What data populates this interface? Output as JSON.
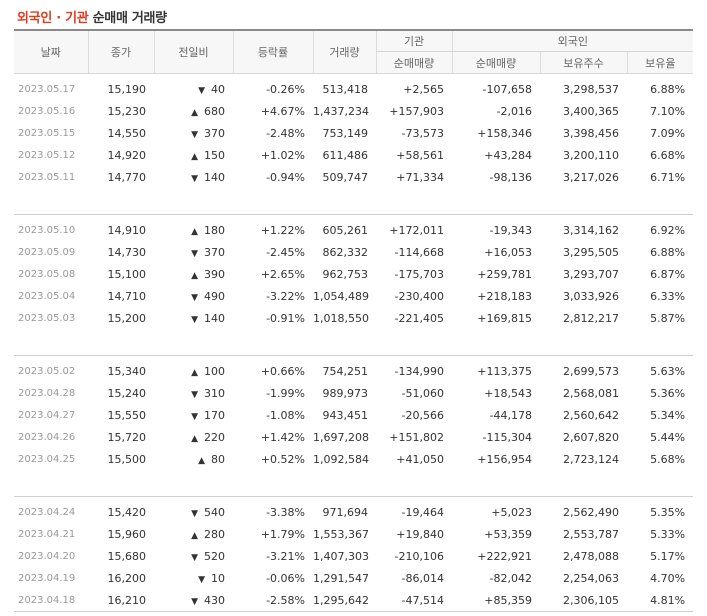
{
  "title": {
    "part1": "외국인",
    "dot": " · ",
    "part2": "기관",
    "part3": " 순매매 거래량"
  },
  "headers": {
    "date": "날짜",
    "close": "종가",
    "change": "전일비",
    "rate": "등락률",
    "volume": "거래량",
    "inst_group": "기관",
    "inst_net": "순매매량",
    "foreign_group": "외국인",
    "foreign_net": "순매매량",
    "foreign_shares": "보유주수",
    "foreign_ratio": "보유율"
  },
  "colors": {
    "up": "#e12020",
    "down": "#1a5fd0",
    "title_accent": "#e03c1f"
  },
  "groups": [
    [
      {
        "date": "2023.05.17",
        "close": "15,190",
        "dir": "down",
        "change": "40",
        "rate": "-0.26%",
        "volume": "513,418",
        "inst": "+2,565",
        "foreign": "-107,658",
        "shares": "3,298,537",
        "ratio": "6.88%"
      },
      {
        "date": "2023.05.16",
        "close": "15,230",
        "dir": "up",
        "change": "680",
        "rate": "+4.67%",
        "volume": "1,437,234",
        "inst": "+157,903",
        "foreign": "-2,016",
        "shares": "3,400,365",
        "ratio": "7.10%"
      },
      {
        "date": "2023.05.15",
        "close": "14,550",
        "dir": "down",
        "change": "370",
        "rate": "-2.48%",
        "volume": "753,149",
        "inst": "-73,573",
        "foreign": "+158,346",
        "shares": "3,398,456",
        "ratio": "7.09%"
      },
      {
        "date": "2023.05.12",
        "close": "14,920",
        "dir": "up",
        "change": "150",
        "rate": "+1.02%",
        "volume": "611,486",
        "inst": "+58,561",
        "foreign": "+43,284",
        "shares": "3,200,110",
        "ratio": "6.68%"
      },
      {
        "date": "2023.05.11",
        "close": "14,770",
        "dir": "down",
        "change": "140",
        "rate": "-0.94%",
        "volume": "509,747",
        "inst": "+71,334",
        "foreign": "-98,136",
        "shares": "3,217,026",
        "ratio": "6.71%"
      }
    ],
    [
      {
        "date": "2023.05.10",
        "close": "14,910",
        "dir": "up",
        "change": "180",
        "rate": "+1.22%",
        "volume": "605,261",
        "inst": "+172,011",
        "foreign": "-19,343",
        "shares": "3,314,162",
        "ratio": "6.92%"
      },
      {
        "date": "2023.05.09",
        "close": "14,730",
        "dir": "down",
        "change": "370",
        "rate": "-2.45%",
        "volume": "862,332",
        "inst": "-114,668",
        "foreign": "+16,053",
        "shares": "3,295,505",
        "ratio": "6.88%"
      },
      {
        "date": "2023.05.08",
        "close": "15,100",
        "dir": "up",
        "change": "390",
        "rate": "+2.65%",
        "volume": "962,753",
        "inst": "-175,703",
        "foreign": "+259,781",
        "shares": "3,293,707",
        "ratio": "6.87%"
      },
      {
        "date": "2023.05.04",
        "close": "14,710",
        "dir": "down",
        "change": "490",
        "rate": "-3.22%",
        "volume": "1,054,489",
        "inst": "-230,400",
        "foreign": "+218,183",
        "shares": "3,033,926",
        "ratio": "6.33%"
      },
      {
        "date": "2023.05.03",
        "close": "15,200",
        "dir": "down",
        "change": "140",
        "rate": "-0.91%",
        "volume": "1,018,550",
        "inst": "-221,405",
        "foreign": "+169,815",
        "shares": "2,812,217",
        "ratio": "5.87%"
      }
    ],
    [
      {
        "date": "2023.05.02",
        "close": "15,340",
        "dir": "up",
        "change": "100",
        "rate": "+0.66%",
        "volume": "754,251",
        "inst": "-134,990",
        "foreign": "+113,375",
        "shares": "2,699,573",
        "ratio": "5.63%"
      },
      {
        "date": "2023.04.28",
        "close": "15,240",
        "dir": "down",
        "change": "310",
        "rate": "-1.99%",
        "volume": "989,973",
        "inst": "-51,060",
        "foreign": "+18,543",
        "shares": "2,568,081",
        "ratio": "5.36%"
      },
      {
        "date": "2023.04.27",
        "close": "15,550",
        "dir": "down",
        "change": "170",
        "rate": "-1.08%",
        "volume": "943,451",
        "inst": "-20,566",
        "foreign": "-44,178",
        "shares": "2,560,642",
        "ratio": "5.34%"
      },
      {
        "date": "2023.04.26",
        "close": "15,720",
        "dir": "up",
        "change": "220",
        "rate": "+1.42%",
        "volume": "1,697,208",
        "inst": "+151,802",
        "foreign": "-115,304",
        "shares": "2,607,820",
        "ratio": "5.44%"
      },
      {
        "date": "2023.04.25",
        "close": "15,500",
        "dir": "up",
        "change": "80",
        "rate": "+0.52%",
        "volume": "1,092,584",
        "inst": "+41,050",
        "foreign": "+156,954",
        "shares": "2,723,124",
        "ratio": "5.68%"
      }
    ],
    [
      {
        "date": "2023.04.24",
        "close": "15,420",
        "dir": "down",
        "change": "540",
        "rate": "-3.38%",
        "volume": "971,694",
        "inst": "-19,464",
        "foreign": "+5,023",
        "shares": "2,562,490",
        "ratio": "5.35%"
      },
      {
        "date": "2023.04.21",
        "close": "15,960",
        "dir": "up",
        "change": "280",
        "rate": "+1.79%",
        "volume": "1,553,367",
        "inst": "+19,840",
        "foreign": "+53,359",
        "shares": "2,553,787",
        "ratio": "5.33%"
      },
      {
        "date": "2023.04.20",
        "close": "15,680",
        "dir": "down",
        "change": "520",
        "rate": "-3.21%",
        "volume": "1,407,303",
        "inst": "-210,106",
        "foreign": "+222,921",
        "shares": "2,478,088",
        "ratio": "5.17%"
      },
      {
        "date": "2023.04.19",
        "close": "16,200",
        "dir": "down",
        "change": "10",
        "rate": "-0.06%",
        "volume": "1,291,547",
        "inst": "-86,014",
        "foreign": "-82,042",
        "shares": "2,254,063",
        "ratio": "4.70%"
      },
      {
        "date": "2023.04.18",
        "close": "16,210",
        "dir": "down",
        "change": "430",
        "rate": "-2.58%",
        "volume": "1,295,642",
        "inst": "-47,514",
        "foreign": "+85,359",
        "shares": "2,306,105",
        "ratio": "4.81%"
      }
    ]
  ]
}
